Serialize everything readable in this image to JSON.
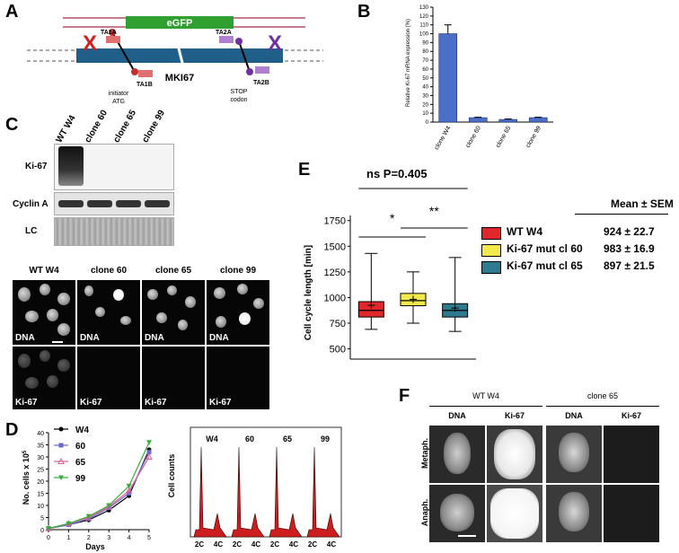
{
  "panels": {
    "a": "A",
    "b": "B",
    "c": "C",
    "d": "D",
    "e": "E",
    "f": "F"
  },
  "panel_a": {
    "egfp": "eGFP",
    "gene": "MKI67",
    "x_left": "X",
    "x_right": "X",
    "ta1a": "TA1A",
    "ta1b": "TA1B",
    "ta2a": "TA2A",
    "ta2b": "TA2B",
    "initiator": "initiator",
    "atg": "ATG",
    "stop": "STOP",
    "codon": "codon"
  },
  "panel_b": {
    "chart_data": {
      "type": "bar",
      "categories": [
        "clone W4",
        "clone 60",
        "clone 65",
        "clone 99"
      ],
      "values": [
        100,
        5,
        3,
        5
      ],
      "errors": [
        10,
        0.5,
        0.5,
        0.5
      ],
      "ylabel": "Relative Ki-67 mRNA expression (%)",
      "ylim": [
        0,
        130
      ],
      "yticks": [
        0,
        10,
        20,
        30,
        40,
        50,
        60,
        70,
        80,
        90,
        100,
        110,
        120,
        130
      ],
      "bar_color": "#4a6fc7"
    }
  },
  "panel_c": {
    "lanes": [
      "WT W4",
      "clone 60",
      "clone 65",
      "clone 99"
    ],
    "rows": [
      "Ki-67",
      "Cyclin A",
      "LC"
    ],
    "micro_heads": [
      "WT W4",
      "clone 60",
      "clone 65",
      "clone 99"
    ],
    "dna_label": "DNA",
    "ki67_label": "Ki-67"
  },
  "panel_d": {
    "growth": {
      "type": "line",
      "xlabel": "Days",
      "ylabel": "No. cells x 10",
      "ylabel_exp": "5",
      "x": [
        0,
        1,
        2,
        3,
        4,
        5
      ],
      "xlim": [
        0,
        5
      ],
      "ylim": [
        0,
        40
      ],
      "yticks": [
        0,
        5,
        10,
        15,
        20,
        25,
        30,
        35,
        40
      ],
      "series": [
        {
          "name": "W4",
          "values": [
            0.5,
            2,
            4,
            8,
            14,
            33
          ],
          "color": "#000000",
          "marker": "circle"
        },
        {
          "name": "60",
          "values": [
            0.5,
            2,
            4.5,
            9,
            15,
            32
          ],
          "color": "#6a6ac8",
          "marker": "square"
        },
        {
          "name": "65",
          "values": [
            0.5,
            2.5,
            5,
            9.5,
            16,
            30
          ],
          "color": "#e0609a",
          "marker": "triangle"
        },
        {
          "name": "99",
          "values": [
            0.5,
            2.5,
            5.5,
            10,
            18,
            36
          ],
          "color": "#3caa3c",
          "marker": "triangle-down"
        }
      ]
    },
    "histo": {
      "ylabel": "Cell counts",
      "samples": [
        "W4",
        "60",
        "65",
        "99"
      ],
      "xlabels": [
        "2C",
        "4C"
      ]
    }
  },
  "panel_e": {
    "ns_label": "ns P=0.405",
    "star1": "*",
    "star2": "**",
    "ylabel": "Cell cycle length [min]",
    "yticks": [
      500,
      750,
      1000,
      1250,
      1500,
      1750
    ],
    "ylim": [
      400,
      1800
    ],
    "boxes": [
      {
        "name": "WT W4",
        "min": 690,
        "q1": 810,
        "median": 875,
        "mean": 924,
        "q3": 960,
        "max": 1430,
        "color": "#e0282c"
      },
      {
        "name": "Ki-67 mut cl 60",
        "min": 750,
        "q1": 920,
        "median": 970,
        "mean": 983,
        "q3": 1040,
        "max": 1250,
        "color": "#f2ea4a"
      },
      {
        "name": "Ki-67 mut cl 65",
        "min": 670,
        "q1": 810,
        "median": 875,
        "mean": 897,
        "q3": 940,
        "max": 1390,
        "color": "#2e7a8e"
      }
    ],
    "table_head": "Mean ± SEM",
    "legend": [
      {
        "name": "WT W4",
        "value": "924 ± 22.7",
        "color": "#e0282c"
      },
      {
        "name": "Ki-67 mut cl 60",
        "value": "983 ± 16.9",
        "color": "#f2ea4a"
      },
      {
        "name": "Ki-67 mut cl 65",
        "value": "897 ± 21.5",
        "color": "#2e7a8e"
      }
    ]
  },
  "panel_f": {
    "group1": "WT W4",
    "group2": "clone 65",
    "cols": [
      "DNA",
      "Ki-67",
      "DNA",
      "Ki-67"
    ],
    "rows": [
      "Metaph.",
      "Anaph."
    ]
  }
}
